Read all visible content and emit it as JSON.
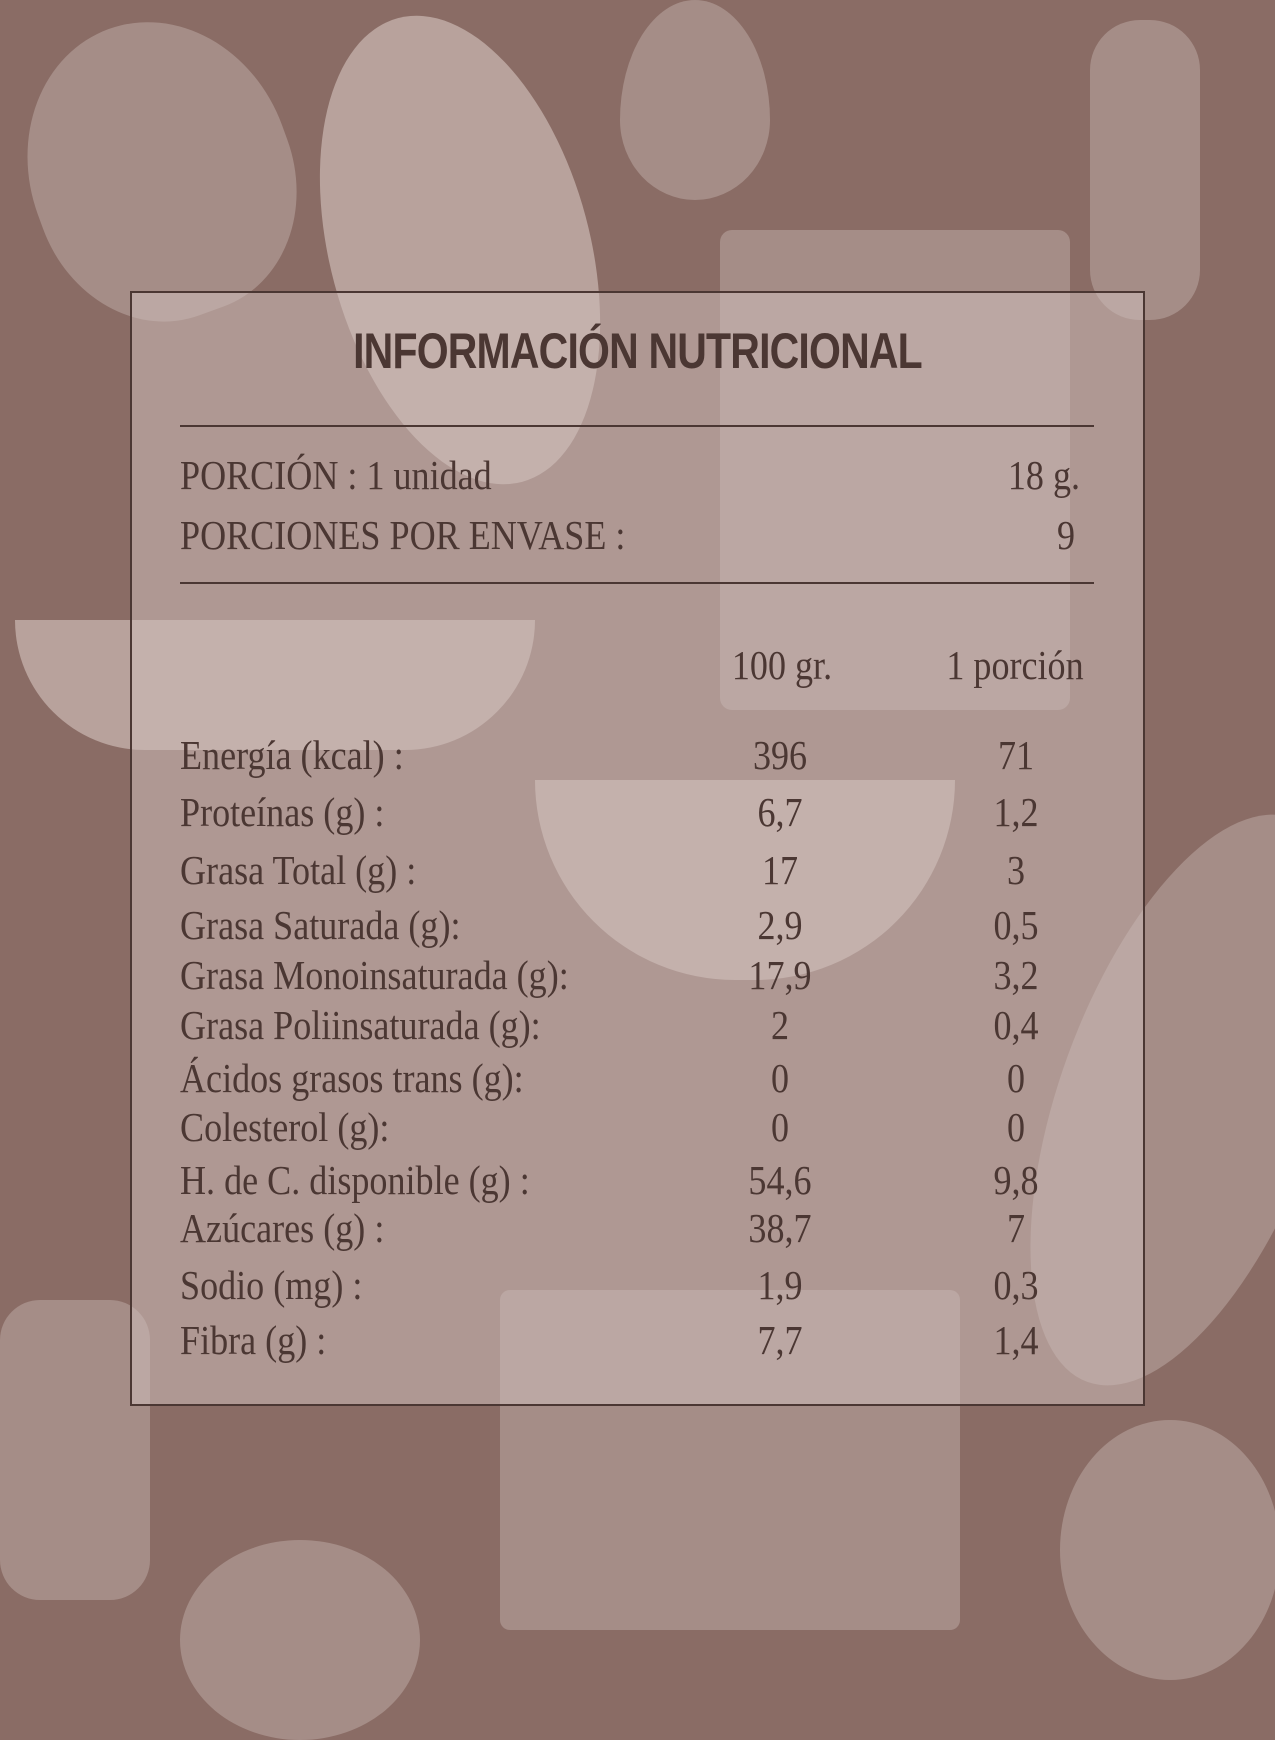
{
  "title": "INFORMACIÓN NUTRICIONAL",
  "serving": {
    "label": "PORCIÓN : 1 unidad",
    "value": "18  g."
  },
  "servings_per_container": {
    "label": "PORCIONES POR ENVASE :",
    "value": "9"
  },
  "columns": [
    "100  gr.",
    "1 porción"
  ],
  "rows": [
    {
      "label": "Energía (kcal) :",
      "per100": "396",
      "perPortion": "71"
    },
    {
      "label": "Proteínas (g) :",
      "per100": "6,7",
      "perPortion": "1,2"
    },
    {
      "label": "Grasa Total (g) :",
      "per100": "17",
      "perPortion": "3"
    },
    {
      "label": "Grasa Saturada (g):",
      "per100": "2,9",
      "perPortion": "0,5"
    },
    {
      "label": "Grasa Monoinsaturada (g):",
      "per100": "17,9",
      "perPortion": "3,2"
    },
    {
      "label": "Grasa Poliinsaturada (g):",
      "per100": "2",
      "perPortion": "0,4"
    },
    {
      "label": "Ácidos grasos trans (g):",
      "per100": "0",
      "perPortion": "0"
    },
    {
      "label": "Colesterol (g):",
      "per100": "0",
      "perPortion": "0"
    },
    {
      "label": "H. de C. disponible (g) :",
      "per100": "54,6",
      "perPortion": "9,8"
    },
    {
      "label": "Azúcares (g) :",
      "per100": "38,7",
      "perPortion": "7"
    },
    {
      "label": "Sodio (mg)  :",
      "per100": "1,9",
      "perPortion": "0,3"
    },
    {
      "label": "Fibra (g) :",
      "per100": "7,7",
      "perPortion": "1,4"
    }
  ],
  "colors": {
    "background": "#8a6c65",
    "text": "#4b3733",
    "panel": "#c6b4af"
  }
}
